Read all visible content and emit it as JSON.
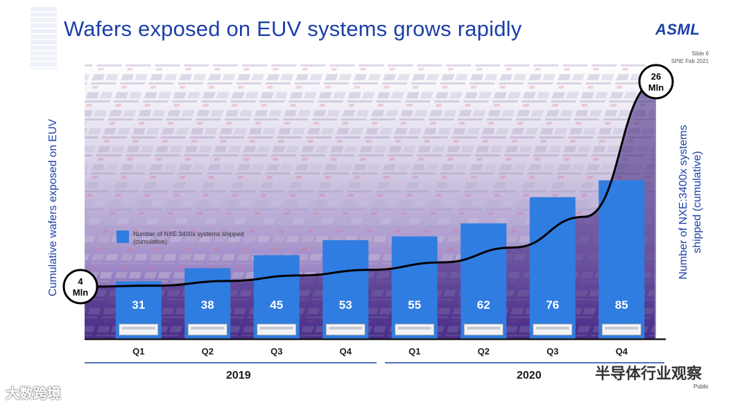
{
  "title": "Wafers exposed on EUV systems grows rapidly",
  "logo": "ASML",
  "slide_number": "Slide 6",
  "slide_event": "SPIE Feb 2021",
  "footer_public": "Public",
  "watermark_left": "大数跨境",
  "watermark_right": "半导体行业观察",
  "colors": {
    "bar": "#2f7de1",
    "title": "#1c3fa8",
    "curve": "#000000",
    "bg_purple": "#5b3d9a"
  },
  "chart_data": {
    "type": "bar",
    "title": "Wafers exposed on EUV systems grows rapidly",
    "ylabel_left": "Cumulative wafers exposed on EUV",
    "ylabel_right_line1": "Number of NXE:3400x systems",
    "ylabel_right_line2": "shipped (cumulative)",
    "legend": "Number of NXE:3400x systems shipped (cumulative)",
    "categories": [
      "Q1",
      "Q2",
      "Q3",
      "Q4",
      "Q1",
      "Q2",
      "Q3",
      "Q4"
    ],
    "years": [
      "2019",
      "2020"
    ],
    "values": [
      31,
      38,
      45,
      53,
      55,
      62,
      76,
      85
    ],
    "ylim": [
      0,
      100
    ],
    "curve_start_label": [
      "4",
      "Mln"
    ],
    "curve_end_label": [
      "26",
      "Mln"
    ],
    "curve_series": {
      "name": "Cumulative wafers exposed (Mln)",
      "values": [
        4,
        4.1,
        4.6,
        5.2,
        5.8,
        6.6,
        8.2,
        11.5,
        26
      ]
    }
  }
}
